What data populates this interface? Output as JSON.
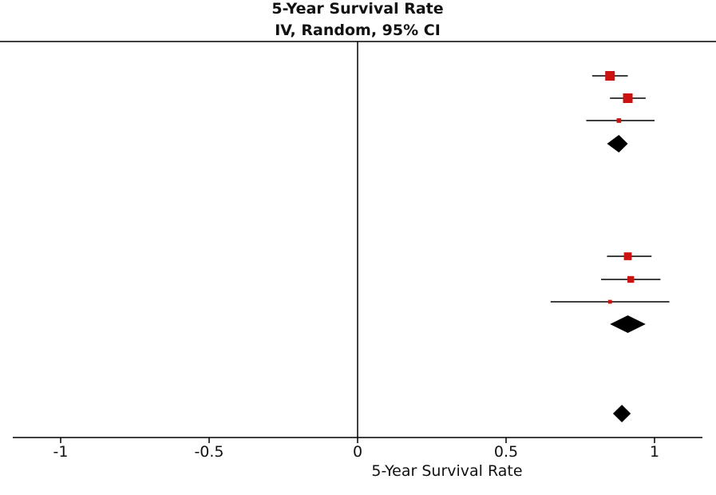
{
  "chart_data": {
    "type": "forest",
    "title": "5-Year Survival Rate",
    "subtitle": "IV, Random, 95% CI",
    "xlabel": "5-Year Survival Rate",
    "xlim": [
      -1.15,
      1.16
    ],
    "ticks": [
      {
        "value": -1,
        "label": "-1"
      },
      {
        "value": -0.5,
        "label": "-0.5"
      },
      {
        "value": 0,
        "label": "0"
      },
      {
        "value": 0.5,
        "label": "0.5"
      },
      {
        "value": 1,
        "label": "1"
      }
    ],
    "colors": {
      "study_marker": "#cc1111",
      "summary_marker": "#000000",
      "lines": "#000000"
    },
    "rows": [
      {
        "kind": "study",
        "estimate": 0.85,
        "ci_low": 0.79,
        "ci_high": 0.91,
        "weight": 1.0
      },
      {
        "kind": "study",
        "estimate": 0.91,
        "ci_low": 0.85,
        "ci_high": 0.97,
        "weight": 1.0
      },
      {
        "kind": "study",
        "estimate": 0.88,
        "ci_low": 0.77,
        "ci_high": 1.0,
        "weight": 0.3
      },
      {
        "kind": "summary",
        "estimate": 0.88,
        "ci_low": 0.84,
        "ci_high": 0.91
      },
      {
        "kind": "study",
        "estimate": 0.91,
        "ci_low": 0.84,
        "ci_high": 0.99,
        "weight": 0.75
      },
      {
        "kind": "study",
        "estimate": 0.92,
        "ci_low": 0.82,
        "ci_high": 1.02,
        "weight": 0.6
      },
      {
        "kind": "study",
        "estimate": 0.85,
        "ci_low": 0.65,
        "ci_high": 1.05,
        "weight": 0.2
      },
      {
        "kind": "summary",
        "estimate": 0.91,
        "ci_low": 0.85,
        "ci_high": 0.97
      },
      {
        "kind": "summary",
        "estimate": 0.89,
        "ci_low": 0.86,
        "ci_high": 0.92
      }
    ]
  }
}
